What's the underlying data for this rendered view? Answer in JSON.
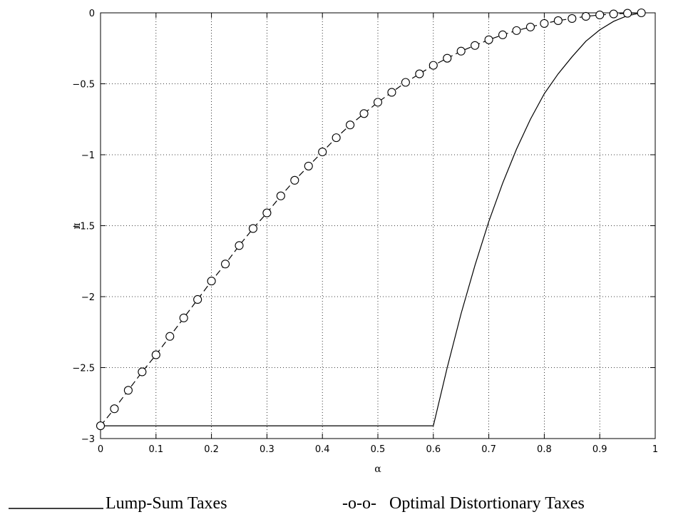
{
  "chart_data": {
    "type": "line",
    "xlabel": "α",
    "ylabel": "π",
    "xlim": [
      0,
      1
    ],
    "ylim": [
      -3,
      0
    ],
    "x_ticks": [
      "0",
      "0.1",
      "0.2",
      "0.3",
      "0.4",
      "0.5",
      "0.6",
      "0.7",
      "0.8",
      "0.9",
      "1"
    ],
    "y_ticks": [
      "0",
      "−0.5",
      "−1",
      "−1.5",
      "−2",
      "−2.5",
      "−3"
    ],
    "grid": true,
    "series": [
      {
        "name": "Lump-Sum Taxes",
        "style": "solid",
        "color": "#000000",
        "x": [
          0,
          0.6,
          0.625,
          0.65,
          0.675,
          0.7,
          0.725,
          0.75,
          0.775,
          0.8,
          0.825,
          0.85,
          0.875,
          0.9,
          0.925,
          0.95,
          0.975
        ],
        "y": [
          -2.91,
          -2.91,
          -2.5,
          -2.12,
          -1.78,
          -1.47,
          -1.2,
          -0.96,
          -0.75,
          -0.57,
          -0.43,
          -0.31,
          -0.2,
          -0.12,
          -0.06,
          -0.02,
          0
        ]
      },
      {
        "name": "Optimal Distortionary Taxes",
        "style": "dashed-circles",
        "color": "#000000",
        "x": [
          0,
          0.025,
          0.05,
          0.075,
          0.1,
          0.125,
          0.15,
          0.175,
          0.2,
          0.225,
          0.25,
          0.275,
          0.3,
          0.325,
          0.35,
          0.375,
          0.4,
          0.425,
          0.45,
          0.475,
          0.5,
          0.525,
          0.55,
          0.575,
          0.6,
          0.625,
          0.65,
          0.675,
          0.7,
          0.725,
          0.75,
          0.775,
          0.8,
          0.825,
          0.85,
          0.875,
          0.9,
          0.925,
          0.95,
          0.975
        ],
        "y": [
          -2.91,
          -2.79,
          -2.66,
          -2.53,
          -2.41,
          -2.28,
          -2.15,
          -2.02,
          -1.89,
          -1.77,
          -1.64,
          -1.52,
          -1.41,
          -1.29,
          -1.18,
          -1.08,
          -0.98,
          -0.88,
          -0.79,
          -0.71,
          -0.63,
          -0.56,
          -0.49,
          -0.43,
          -0.37,
          -0.32,
          -0.27,
          -0.23,
          -0.19,
          -0.155,
          -0.125,
          -0.1,
          -0.075,
          -0.055,
          -0.04,
          -0.025,
          -0.015,
          -0.008,
          -0.003,
          0
        ]
      }
    ]
  },
  "legend": {
    "lump_sum_label": "Lump-Sum Taxes",
    "distortionary_marker": "-o-o-",
    "distortionary_label": "Optimal Distortionary Taxes"
  }
}
